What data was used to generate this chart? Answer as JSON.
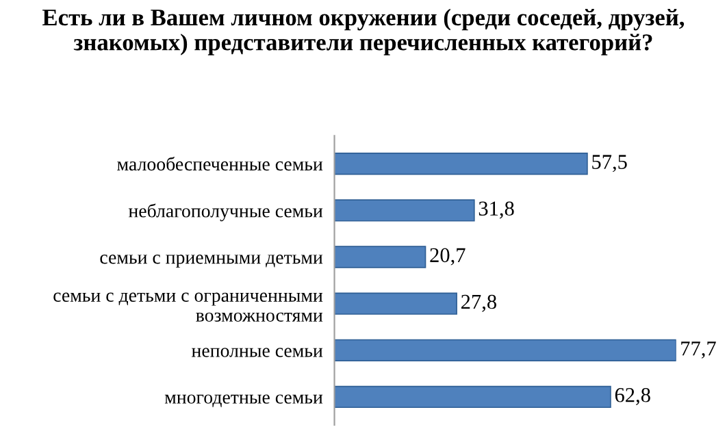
{
  "chart_data": {
    "type": "bar",
    "orientation": "horizontal",
    "title": "Есть ли в Вашем личном окружении (среди соседей, друзей, знакомых) представители перечисленных категорий?",
    "categories": [
      "малообеспеченные семьи",
      "неблагополучные семьи",
      "семьи с приемными детьми",
      "семьи с детьми с ограниченными возможностями",
      "неполные семьи",
      "многодетные семьи"
    ],
    "values": [
      57.5,
      31.8,
      20.7,
      27.8,
      77.7,
      62.8
    ],
    "value_labels": [
      "57,5",
      "31,8",
      "20,7",
      "27,8",
      "77,7",
      "62,8"
    ],
    "color": "#4f81bd",
    "grid": false,
    "legend": false
  }
}
